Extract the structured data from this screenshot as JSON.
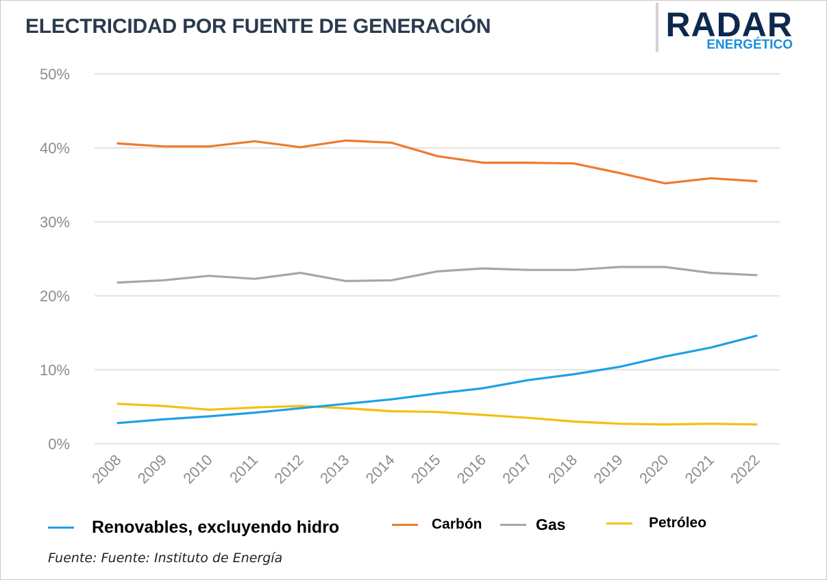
{
  "header": {
    "title": "ELECTRICIDAD POR FUENTE DE GENERACIÓN"
  },
  "logo": {
    "main": "RADAR",
    "sub": "ENERGÉTICO"
  },
  "colors": {
    "renewables": "#1ea0e6",
    "coal": "#ee7a2e",
    "gas": "#a6a6a6",
    "oil": "#f5bf10",
    "grid": "#e3e3e3",
    "tick": "#8c8c8c"
  },
  "chart_data": {
    "type": "line",
    "x": [
      "2008",
      "2009",
      "2010",
      "2011",
      "2012",
      "2013",
      "2014",
      "2015",
      "2016",
      "2017",
      "2018",
      "2019",
      "2020",
      "2021",
      "2022"
    ],
    "ylim": [
      0,
      50
    ],
    "yticks": [
      "0%",
      "10%",
      "20%",
      "30%",
      "40%",
      "50%"
    ],
    "grid": true,
    "legend_position": "bottom",
    "series": [
      {
        "name": "Renovables, excluyendo hidro",
        "color_key": "renewables",
        "values": [
          2.8,
          3.3,
          3.7,
          4.2,
          4.8,
          5.4,
          6.0,
          6.8,
          7.5,
          8.6,
          9.4,
          10.4,
          11.8,
          13.0,
          14.6
        ]
      },
      {
        "name": "Carbón",
        "color_key": "coal",
        "values": [
          40.6,
          40.2,
          40.2,
          40.9,
          40.1,
          41.0,
          40.7,
          38.9,
          38.0,
          38.0,
          37.9,
          36.6,
          35.2,
          35.9,
          35.5
        ]
      },
      {
        "name": "Gas",
        "color_key": "gas",
        "values": [
          21.8,
          22.1,
          22.7,
          22.3,
          23.1,
          22.0,
          22.1,
          23.3,
          23.7,
          23.5,
          23.5,
          23.9,
          23.9,
          23.1,
          22.8
        ]
      },
      {
        "name": "Petróleo",
        "color_key": "oil",
        "values": [
          5.4,
          5.1,
          4.6,
          4.9,
          5.1,
          4.8,
          4.4,
          4.3,
          3.9,
          3.5,
          3.0,
          2.7,
          2.6,
          2.7,
          2.6
        ]
      }
    ]
  },
  "source": "Fuente: Fuente: Instituto de Energía"
}
